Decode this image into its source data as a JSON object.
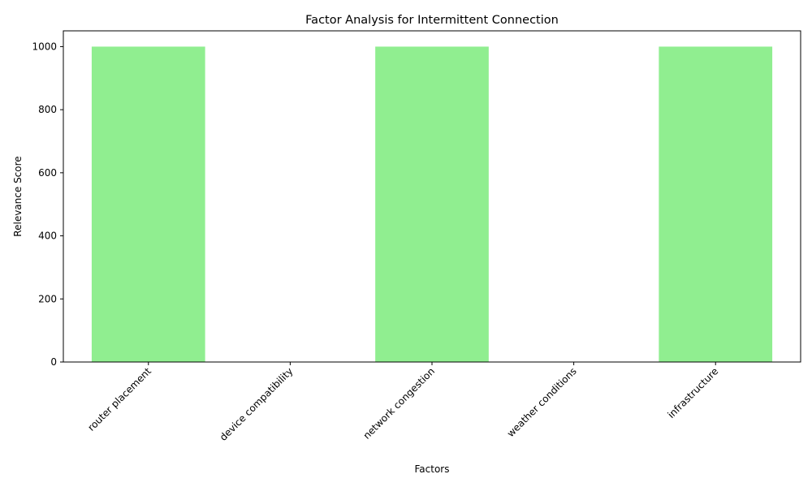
{
  "chart_data": {
    "type": "bar",
    "title": "Factor Analysis for Intermittent Connection",
    "xlabel": "Factors",
    "ylabel": "Relevance Score",
    "categories": [
      "router placement",
      "device compatibility",
      "network congestion",
      "weather conditions",
      "infrastructure"
    ],
    "values": [
      1000,
      0,
      1000,
      0,
      1000
    ],
    "ylim": [
      0,
      1050
    ],
    "yticks": [
      0,
      200,
      400,
      600,
      800,
      1000
    ],
    "bar_color": "#90ee90",
    "grid": false,
    "legend": "none"
  }
}
